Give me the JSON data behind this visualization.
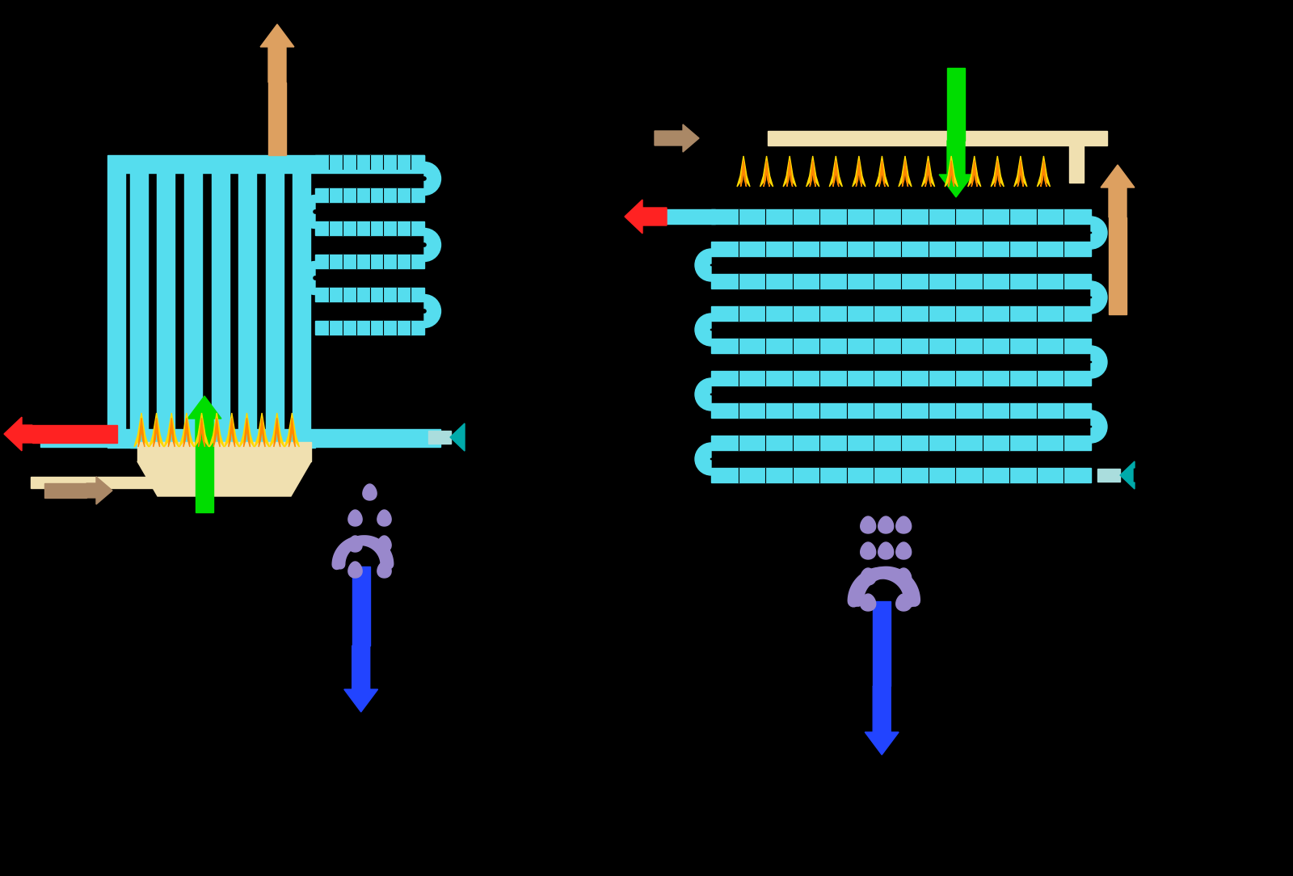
{
  "bg_color": "#000000",
  "cyan": "#55DDEE",
  "beige": "#F0E0B0",
  "green": "#00DD00",
  "orange_arrow": "#DDA060",
  "brown_arrow": "#AA8866",
  "red": "#FF2222",
  "blue_arrow": "#2244FF",
  "lavender": "#9988CC",
  "flame_yellow": "#FFD700",
  "flame_orange": "#FF8800",
  "teal_arrow": "#00AAAA",
  "lw_stripe": 0.8
}
